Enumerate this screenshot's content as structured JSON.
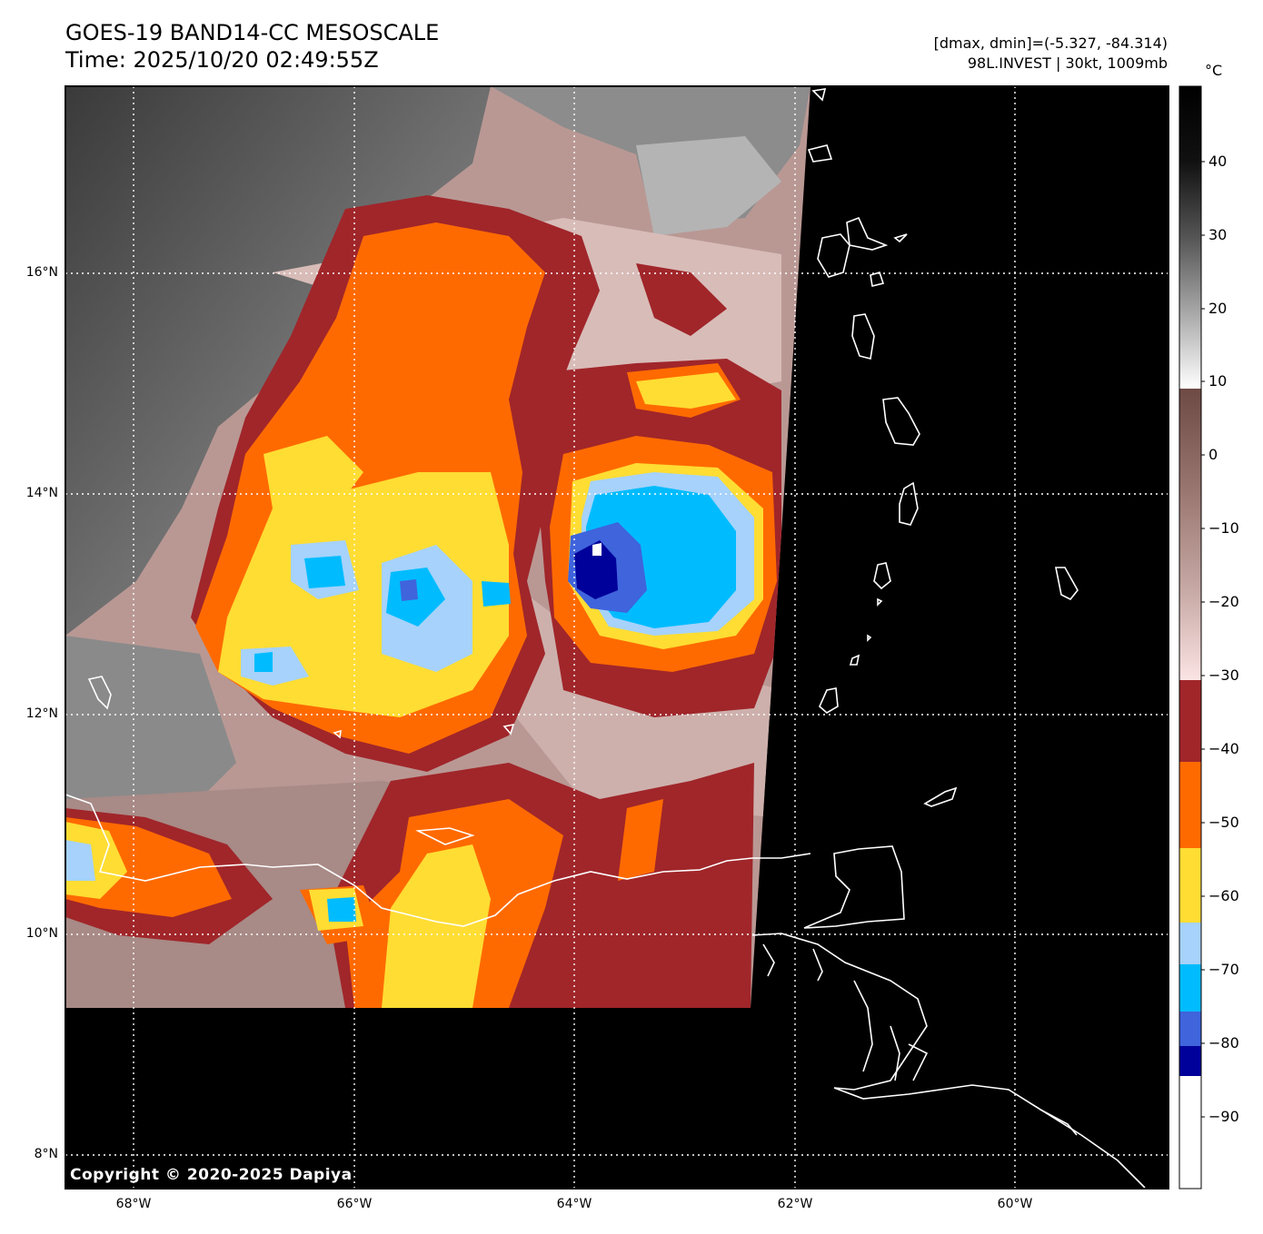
{
  "header": {
    "title_line1": "GOES-19 BAND14-CC MESOSCALE",
    "title_line2": "Time: 2025/10/20 02:49:55Z",
    "info_line1": "[dmax, dmin]=(-5.327, -84.314)",
    "info_line2": "98L.INVEST | 30kt, 1009mb"
  },
  "map": {
    "lat_labels": [
      "16°N",
      "14°N",
      "12°N",
      "10°N",
      "8°N"
    ],
    "lon_labels": [
      "68°W",
      "66°W",
      "64°W",
      "62°W",
      "60°W"
    ],
    "lat_values": [
      16,
      14,
      12,
      10,
      8
    ],
    "lon_values": [
      -68,
      -66,
      -64,
      -62,
      -60
    ],
    "extent": {
      "lon_min": -68.6,
      "lon_max": -58.6,
      "lat_min": 7.7,
      "lat_max": 17.7
    },
    "coastline_color": "#ffffff",
    "background_color": "#000000",
    "copyright": "Copyright © 2020-2025 Dapiya"
  },
  "colorbar": {
    "unit": "°C",
    "ticks": [
      "40",
      "30",
      "20",
      "10",
      "0",
      "−10",
      "−20",
      "−30",
      "−40",
      "−50",
      "−60",
      "−70",
      "−80",
      "−90"
    ],
    "tick_values": [
      40,
      30,
      20,
      10,
      0,
      -10,
      -20,
      -30,
      -40,
      -50,
      -60,
      -70,
      -80,
      -90
    ],
    "range": [
      -100,
      50
    ],
    "segments": [
      {
        "from": 50,
        "to": 10,
        "gradient": [
          "#000000",
          "#1a1a1a",
          "#4a4a4a",
          "#8a8a8a",
          "#c8c8c8",
          "#ffffff"
        ]
      },
      {
        "from": 10,
        "to": -31,
        "gradient": [
          "#6e4a45",
          "#9a7670",
          "#c4a6a2",
          "#e8d4d2",
          "#fbe4e4"
        ]
      },
      {
        "from": -31,
        "to": -41,
        "color": "#a0262a"
      },
      {
        "from": -41,
        "to": -52,
        "color": "#ff6a00"
      },
      {
        "from": -52,
        "to": -62,
        "color": "#ffdd33"
      },
      {
        "from": -62,
        "to": -68,
        "color": "#a6d2fb"
      },
      {
        "from": -68,
        "to": -75,
        "color": "#00bcff"
      },
      {
        "from": -75,
        "to": -81,
        "color": "#3f64dc"
      },
      {
        "from": -81,
        "to": -85,
        "color": "#00009a"
      },
      {
        "from": -85,
        "to": -100,
        "color": "#ffffff"
      }
    ]
  },
  "palette": {
    "dark_red": "#a0262a",
    "orange": "#ff6a00",
    "yellow": "#ffdd33",
    "light_blue": "#a6d2fb",
    "cyan": "#00bcff",
    "royal_blue": "#3f64dc",
    "navy": "#00009a",
    "pink_warm": "#e2c8c6",
    "brown_warm": "#7c5c58",
    "gray_land": "#7a7a7a"
  }
}
